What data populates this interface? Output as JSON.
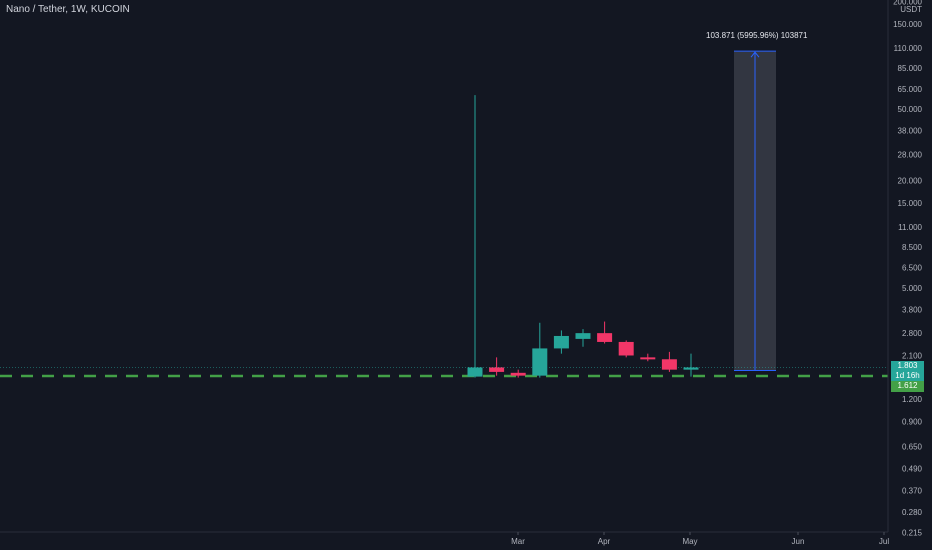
{
  "header": {
    "symbol_title": "Nano / Tether, 1W, KUCOIN"
  },
  "price_axis": {
    "currency": "USDT",
    "ticks": [
      "200.000",
      "150.000",
      "110.000",
      "85.000",
      "65.000",
      "50.000",
      "38.000",
      "28.000",
      "20.000",
      "15.000",
      "11.000",
      "8.500",
      "6.500",
      "5.000",
      "3.800",
      "2.800",
      "2.100",
      "1.200",
      "0.900",
      "0.650",
      "0.490",
      "0.370",
      "0.280",
      "0.215"
    ],
    "tick_values": [
      200,
      150,
      110,
      85,
      65,
      50,
      38,
      28,
      20,
      15,
      11,
      8.5,
      6.5,
      5,
      3.8,
      2.8,
      2.1,
      1.2,
      0.9,
      0.65,
      0.49,
      0.37,
      0.28,
      0.215
    ]
  },
  "time_axis": {
    "labels": [
      "Mar",
      "Apr",
      "May",
      "Jun",
      "Jul"
    ]
  },
  "current": {
    "price": "1.803",
    "countdown": "1d 16h",
    "low_level": "1.612",
    "price_value": 1.803,
    "low_value": 1.612
  },
  "measurement": {
    "label": "103.871 (5995.96%) 103871",
    "from_price": 1.7323,
    "to_price": 105.6
  },
  "colors": {
    "background": "#131722",
    "up": "#26a69a",
    "down": "#f23668",
    "dashed_line": "#43a047",
    "measure_box": "#363a45",
    "measure_line": "#2962ff"
  },
  "chart_data": {
    "type": "candlestick",
    "interval": "1W",
    "scale": "log",
    "candles": [
      {
        "open": 1.6,
        "high": 60.0,
        "low": 1.58,
        "close": 1.8,
        "direction": "up"
      },
      {
        "open": 1.8,
        "high": 2.05,
        "low": 1.62,
        "close": 1.7,
        "direction": "down"
      },
      {
        "open": 1.68,
        "high": 1.75,
        "low": 1.58,
        "close": 1.62,
        "direction": "down"
      },
      {
        "open": 1.62,
        "high": 3.2,
        "low": 1.58,
        "close": 2.3,
        "direction": "up"
      },
      {
        "open": 2.3,
        "high": 2.9,
        "low": 2.15,
        "close": 2.7,
        "direction": "up"
      },
      {
        "open": 2.6,
        "high": 2.95,
        "low": 2.35,
        "close": 2.8,
        "direction": "up"
      },
      {
        "open": 2.8,
        "high": 3.25,
        "low": 2.45,
        "close": 2.5,
        "direction": "down"
      },
      {
        "open": 2.5,
        "high": 2.55,
        "low": 2.05,
        "close": 2.1,
        "direction": "down"
      },
      {
        "open": 2.05,
        "high": 2.15,
        "low": 1.95,
        "close": 2.0,
        "direction": "down"
      },
      {
        "open": 2.0,
        "high": 2.2,
        "low": 1.7,
        "close": 1.75,
        "direction": "down"
      },
      {
        "open": 1.75,
        "high": 2.15,
        "low": 1.6,
        "close": 1.8,
        "direction": "up"
      }
    ]
  }
}
